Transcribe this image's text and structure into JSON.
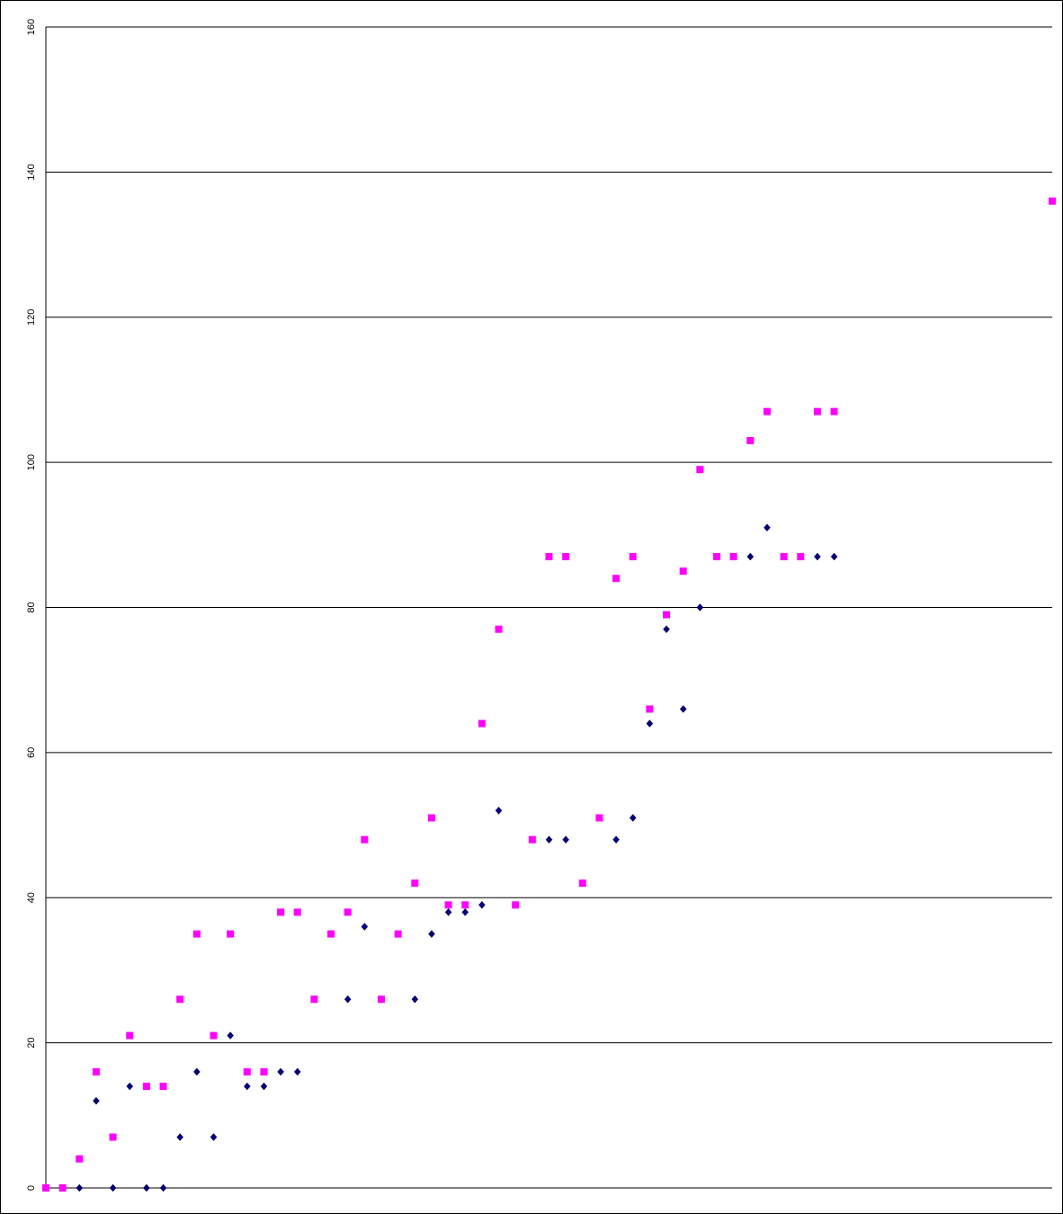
{
  "chart_data": {
    "type": "scatter",
    "x": [
      0,
      1,
      2,
      3,
      4,
      5,
      6,
      7,
      8,
      9,
      10,
      11,
      12,
      13,
      14,
      15,
      16,
      17,
      18,
      19,
      20,
      21,
      22,
      23,
      24,
      25,
      26,
      27,
      28,
      29,
      30,
      31,
      32,
      33,
      34,
      35,
      36,
      37,
      38,
      39,
      40,
      41,
      42,
      43,
      44,
      45,
      46,
      47,
      48,
      49,
      50,
      51,
      52,
      53,
      54,
      55,
      56,
      57,
      58,
      59,
      60
    ],
    "series": [
      {
        "color": "#000080",
        "marker": "diamond",
        "values": [
          0,
          0,
          0,
          12,
          0,
          14,
          0,
          0,
          7,
          16,
          7,
          21,
          14,
          14,
          16,
          16,
          26,
          35,
          26,
          36,
          26,
          35,
          26,
          35,
          38,
          38,
          39,
          52,
          39,
          48,
          48,
          48,
          42,
          51,
          48,
          51,
          64,
          77,
          66,
          80,
          87,
          87,
          87,
          91,
          87,
          87,
          87,
          87,
          null,
          null,
          null,
          null,
          null,
          null,
          null,
          null,
          null,
          null,
          null,
          null,
          null
        ]
      },
      {
        "color": "#ff00ff",
        "marker": "square",
        "values": [
          0,
          0,
          4,
          16,
          7,
          21,
          14,
          14,
          26,
          35,
          21,
          35,
          16,
          16,
          38,
          38,
          26,
          35,
          38,
          48,
          26,
          35,
          42,
          51,
          39,
          39,
          64,
          77,
          39,
          48,
          87,
          87,
          42,
          51,
          84,
          87,
          66,
          79,
          85,
          99,
          87,
          87,
          103,
          107,
          87,
          87,
          107,
          107,
          null,
          null,
          null,
          null,
          null,
          null,
          null,
          null,
          null,
          null,
          null,
          null,
          136
        ]
      }
    ],
    "xlim": [
      0,
      60
    ],
    "ylim": [
      0,
      160
    ],
    "yticks": [
      0,
      20,
      40,
      60,
      80,
      100,
      120,
      140,
      160
    ],
    "grid": true
  }
}
